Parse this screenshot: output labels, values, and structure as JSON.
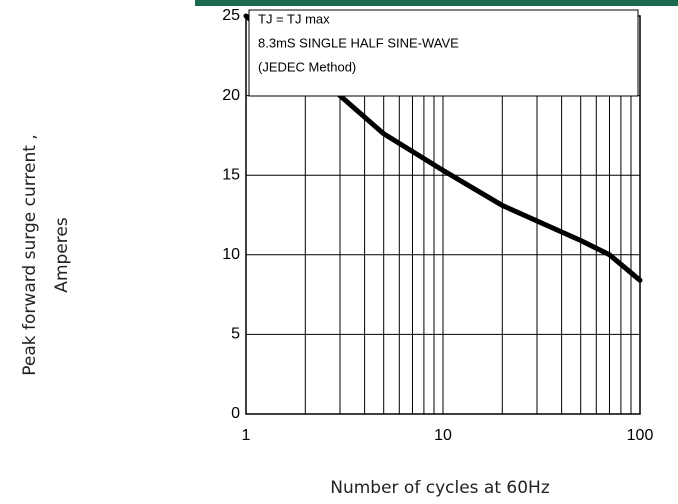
{
  "chart_data": {
    "type": "line",
    "x": [
      1,
      2,
      3,
      5,
      10,
      20,
      50,
      70,
      100
    ],
    "series": [
      {
        "color": "#000000",
        "values": [
          25,
          22,
          20,
          17.6,
          15.3,
          13.1,
          10.9,
          10,
          8.4
        ]
      }
    ],
    "xlim": [
      1,
      100
    ],
    "xticks": [
      1,
      10,
      100
    ],
    "xscale": "log",
    "xgrid": [
      1,
      2,
      3,
      4,
      5,
      6,
      7,
      8,
      9,
      10,
      20,
      30,
      40,
      50,
      60,
      70,
      80,
      90,
      100
    ],
    "ylim": [
      0,
      25
    ],
    "yticks": [
      0,
      5,
      10,
      15,
      20,
      25
    ],
    "grid": true,
    "xlabel": "Number of cycles at 60Hz",
    "ylabel": [
      "Peak forward surge current ,",
      "Amperes"
    ],
    "annotations": [
      "TJ = TJ max",
      "8.3mS SINGLE HALF SINE-WAVE",
      "(JEDEC Method)"
    ]
  }
}
